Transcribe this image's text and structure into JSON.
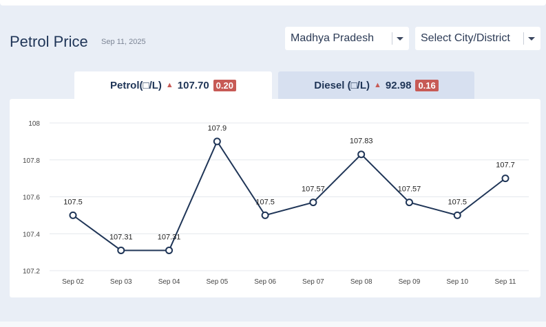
{
  "header": {
    "title": "Petrol Price",
    "date": "Sep 11, 2025"
  },
  "filters": {
    "state_value": "Madhya Pradesh",
    "city_value": "Select City/District"
  },
  "tabs": [
    {
      "label": "Petrol(□/L)",
      "price": "107.70",
      "change": "0.20",
      "active": true
    },
    {
      "label": "Diesel (□/L)",
      "price": "92.98",
      "change": "0.16",
      "active": false
    }
  ],
  "colors": {
    "line": "#1f3557",
    "badge": "#c75a55",
    "grid": "#e4e7ec"
  },
  "chart_data": {
    "type": "line",
    "categories": [
      "Sep 02",
      "Sep 03",
      "Sep 04",
      "Sep 05",
      "Sep 06",
      "Sep 07",
      "Sep 08",
      "Sep 09",
      "Sep 10",
      "Sep 11"
    ],
    "values": [
      107.5,
      107.31,
      107.31,
      107.9,
      107.5,
      107.57,
      107.83,
      107.57,
      107.5,
      107.7
    ],
    "value_labels": [
      "107.5",
      "107.31",
      "107.31",
      "107.9",
      "107.5",
      "107.57",
      "107.83",
      "107.57",
      "107.5",
      "107.7"
    ],
    "yticks": [
      "107.2",
      "107.4",
      "107.6",
      "107.8",
      "108"
    ],
    "ylim": [
      107.2,
      108
    ],
    "grid": true,
    "title": "",
    "xlabel": "",
    "ylabel": ""
  }
}
